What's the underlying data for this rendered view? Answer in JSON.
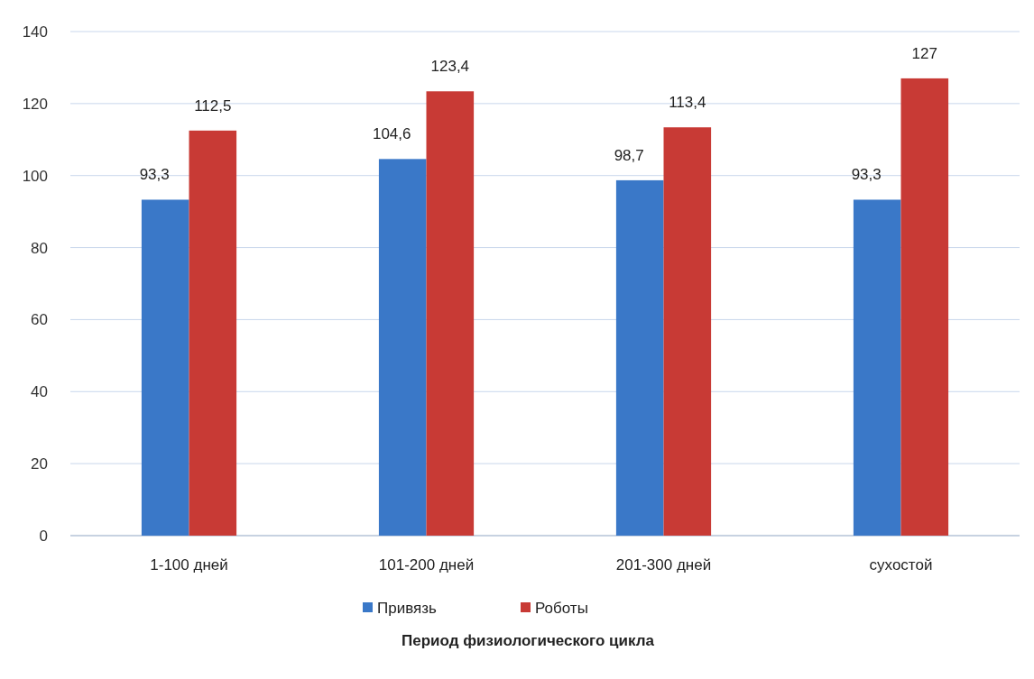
{
  "chart_data": {
    "type": "bar",
    "xlabel": "Период физиологического цикла",
    "categories": [
      "1-100 дней",
      "101-200 дней",
      "201-300 дней",
      "сухостой"
    ],
    "series": [
      {
        "name": "Привязь",
        "color": "#3a78c8",
        "values": [
          93.3,
          104.6,
          98.7,
          93.3
        ],
        "value_labels": [
          "93,3",
          "104,6",
          "98,7",
          "93,3"
        ]
      },
      {
        "name": "Роботы",
        "color": "#c83a35",
        "values": [
          112.5,
          123.4,
          113.4,
          127
        ],
        "value_labels": [
          "112,5",
          "123,4",
          "113,4",
          "127"
        ]
      }
    ],
    "ylim": [
      0,
      140
    ],
    "yticks": [
      0,
      20,
      40,
      60,
      80,
      100,
      120,
      140
    ],
    "grid": "y",
    "legend": "bottom"
  }
}
